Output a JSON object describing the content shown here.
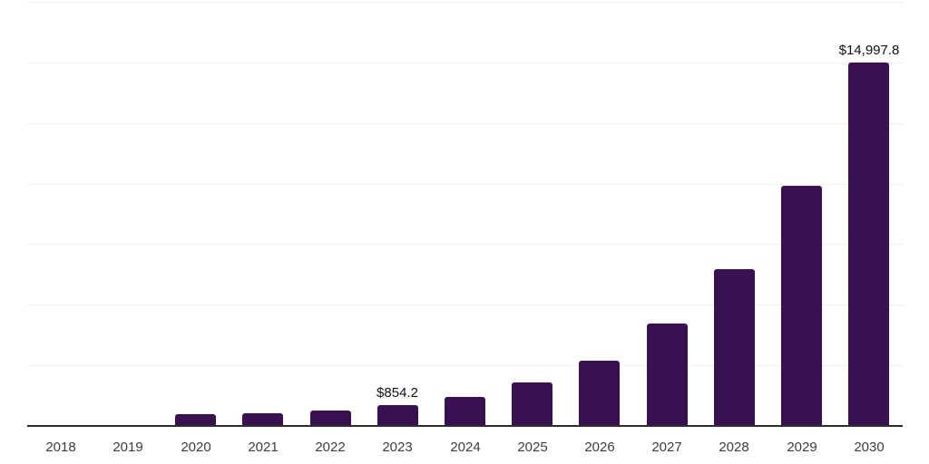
{
  "chart_data": {
    "type": "bar",
    "categories": [
      "2018",
      "2019",
      "2020",
      "2021",
      "2022",
      "2023",
      "2024",
      "2025",
      "2026",
      "2027",
      "2028",
      "2029",
      "2030"
    ],
    "values": [
      0,
      0,
      490,
      530,
      620,
      854.2,
      1180,
      1790,
      2710,
      4210,
      6480,
      9900,
      14997.8
    ],
    "data_labels": [
      "",
      "",
      "",
      "",
      "",
      "$854.2",
      "",
      "",
      "",
      "",
      "",
      "",
      "$14,997.8"
    ],
    "xlabel": "",
    "ylabel": "",
    "ylim": [
      0,
      17500
    ],
    "gridline_step": 2500,
    "grid": true,
    "legend": false,
    "colors": {
      "bar": "#391150",
      "gridline": "#f0f0f0",
      "axis": "#2e2e2e",
      "tick_label": "#3d3d3d",
      "data_label": "#111111",
      "background": "#ffffff"
    }
  }
}
